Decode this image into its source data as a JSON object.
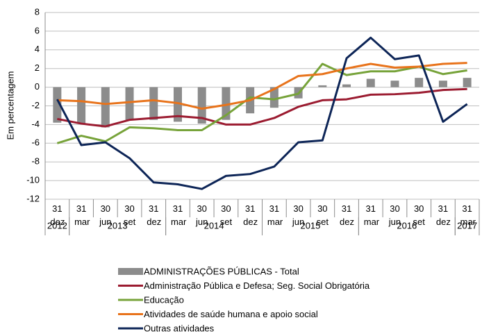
{
  "chart_data": {
    "type": "bar-line",
    "y_label": "Em percentagem",
    "categories": [
      "31 dez",
      "31 mar",
      "30 jun",
      "30 set",
      "31 dez",
      "31 mar",
      "30 jun",
      "30 set",
      "31 dez",
      "31 mar",
      "30 jun",
      "30 set",
      "31 dez",
      "31 mar",
      "30 jun",
      "30 set",
      "31 dez",
      "31 mar"
    ],
    "groups": [
      {
        "label": "2012",
        "count": 1
      },
      {
        "label": "2013",
        "count": 4
      },
      {
        "label": "2014",
        "count": 4
      },
      {
        "label": "2015",
        "count": 4
      },
      {
        "label": "2016",
        "count": 4
      },
      {
        "label": "2017",
        "count": 1
      }
    ],
    "ylim": [
      -12,
      8
    ],
    "yticks": [
      -12,
      -10,
      -8,
      -6,
      -4,
      -2,
      0,
      2,
      4,
      6,
      8
    ],
    "grid": true,
    "series": [
      {
        "name": "ADMINISTRAÇÕES PÚBLICAS - Total",
        "kind": "bar",
        "color": "#8c8c8c",
        "values": [
          -3.8,
          -3.9,
          -4.3,
          -3.5,
          -3.5,
          -3.7,
          -3.9,
          -3.5,
          -2.8,
          -2.2,
          -1.2,
          0.2,
          0.3,
          0.9,
          0.7,
          1.0,
          0.7,
          1.0
        ]
      },
      {
        "name": "Administração Pública e Defesa; Seg. Social Obrigatória",
        "kind": "line",
        "color": "#9b1b30",
        "values": [
          -3.4,
          -3.9,
          -4.2,
          -3.5,
          -3.3,
          -3.1,
          -3.3,
          -4.0,
          -4.0,
          -3.3,
          -2.1,
          -1.4,
          -1.3,
          -0.8,
          -0.75,
          -0.6,
          -0.3,
          -0.2
        ]
      },
      {
        "name": "Educação",
        "kind": "line",
        "color": "#77a33a",
        "values": [
          -6.0,
          -5.2,
          -5.8,
          -4.3,
          -4.4,
          -4.6,
          -4.6,
          -3.0,
          -1.1,
          -1.3,
          -0.7,
          2.5,
          1.3,
          1.7,
          1.7,
          2.2,
          1.4,
          1.8
        ]
      },
      {
        "name": "Atividades de saúde humana e apoio social",
        "kind": "line",
        "color": "#e8731b",
        "values": [
          -1.4,
          -1.5,
          -1.8,
          -1.6,
          -1.4,
          -1.7,
          -2.3,
          -1.9,
          -1.4,
          -0.2,
          1.2,
          1.4,
          2.0,
          2.5,
          2.1,
          2.2,
          2.5,
          2.6
        ]
      },
      {
        "name": "Outras atividades",
        "kind": "line",
        "color": "#0d2557",
        "values": [
          -1.3,
          -6.2,
          -5.9,
          -7.6,
          -10.2,
          -10.4,
          -10.9,
          -9.5,
          -9.3,
          -8.5,
          -5.9,
          -5.7,
          3.1,
          5.3,
          3.0,
          3.4,
          -3.7,
          -1.8
        ]
      }
    ]
  }
}
